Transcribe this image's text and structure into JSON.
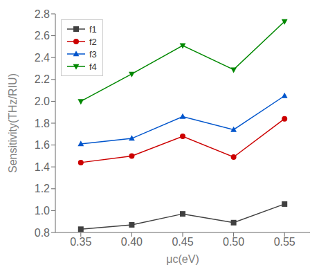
{
  "chart_data": {
    "type": "line",
    "xlabel": "μc(eV)",
    "ylabel": "Sensitivity(THz/RIU)",
    "x": [
      0.35,
      0.4,
      0.45,
      0.5,
      0.55
    ],
    "series": [
      {
        "name": "f1",
        "color": "#404040",
        "marker": "square",
        "values": [
          0.83,
          0.87,
          0.97,
          0.89,
          1.06
        ]
      },
      {
        "name": "f2",
        "color": "#cc0000",
        "marker": "circle",
        "values": [
          1.44,
          1.5,
          1.68,
          1.49,
          1.84
        ]
      },
      {
        "name": "f3",
        "color": "#0055cc",
        "marker": "triangle-up",
        "values": [
          1.61,
          1.66,
          1.86,
          1.74,
          2.05
        ]
      },
      {
        "name": "f4",
        "color": "#008800",
        "marker": "triangle-down",
        "values": [
          2.0,
          2.25,
          2.51,
          2.29,
          2.73
        ]
      }
    ],
    "xlim": [
      0.325,
      0.575
    ],
    "xticks": [
      0.35,
      {
        "value": 0.4,
        "label": "0.40"
      },
      0.45,
      {
        "value": 0.5,
        "label": "0.50"
      },
      0.55
    ],
    "ylim": [
      0.8,
      2.8
    ],
    "yticks": [
      0.8,
      {
        "value": 1.0,
        "label": "1.0"
      },
      1.2,
      1.4,
      1.6,
      1.8,
      {
        "value": 2.0,
        "label": "2.0"
      },
      2.2,
      2.4,
      2.6,
      2.8
    ],
    "grid": false,
    "legend": "upper left"
  }
}
